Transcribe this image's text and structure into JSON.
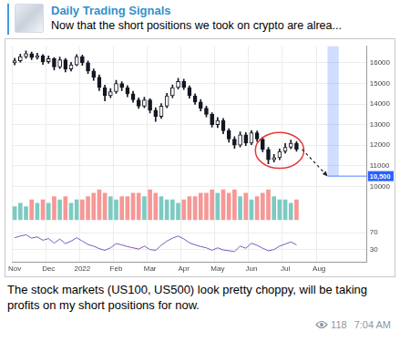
{
  "post": {
    "channel": "Daily Trading Signals",
    "preview": "Now that the short positions we took on crypto are alrea...",
    "caption": "The stock markets (US100, US500) look pretty choppy, will be taking profits on my short positions for now.",
    "views": 118,
    "time": "7:04 AM"
  },
  "chart_data": [
    {
      "type": "candlestick",
      "categories": [
        "Nov",
        null,
        null,
        null,
        null,
        null,
        "Dec",
        null,
        null,
        null,
        null,
        null,
        "2022",
        null,
        null,
        null,
        null,
        null,
        "Feb",
        null,
        null,
        null,
        null,
        null,
        "Mar",
        null,
        null,
        null,
        null,
        null,
        "Apr",
        null,
        null,
        null,
        null,
        null,
        "May",
        null,
        null,
        null,
        null,
        null,
        "Jun",
        null,
        null,
        null,
        null,
        null,
        "Jul",
        null,
        null,
        null,
        null,
        null,
        "Aug",
        null,
        null,
        null,
        null,
        null,
        null,
        null,
        null
      ],
      "open": [
        16000,
        16100,
        16300,
        16450,
        16250,
        16350,
        16050,
        16200,
        15800,
        16150,
        15700,
        15900,
        16300,
        16000,
        15600,
        15300,
        14800,
        14400,
        14600,
        15000,
        14800,
        14500,
        14200,
        13900,
        14200,
        13700,
        13400,
        13900,
        14400,
        14800,
        15100,
        14800,
        14400,
        14100,
        13800,
        13500,
        13000,
        13200,
        12700,
        12300,
        12000,
        12500,
        12100,
        12600,
        12300,
        11800,
        11300,
        11400,
        11700,
        11900,
        12100,
        null,
        null,
        null,
        null,
        null,
        null,
        null,
        null,
        null,
        null,
        null,
        null
      ],
      "high": [
        16220,
        16420,
        16580,
        16520,
        16470,
        16400,
        16330,
        16260,
        16280,
        16210,
        16020,
        16400,
        16380,
        16090,
        15700,
        15420,
        14920,
        14750,
        15150,
        15080,
        14900,
        14620,
        14300,
        14330,
        14260,
        13820,
        14020,
        14520,
        14930,
        15250,
        15200,
        14880,
        14500,
        14220,
        13900,
        13580,
        13350,
        13300,
        12800,
        12420,
        12650,
        12620,
        12720,
        12690,
        12400,
        11900,
        11550,
        11820,
        12080,
        12250,
        12180,
        null,
        null,
        null,
        null,
        null,
        null,
        null,
        null,
        null,
        null,
        null,
        null
      ],
      "low": [
        15900,
        16030,
        16220,
        16150,
        16180,
        15920,
        15980,
        15650,
        15720,
        15560,
        15600,
        15850,
        15880,
        15480,
        15150,
        14650,
        14150,
        14300,
        14520,
        14650,
        14350,
        14080,
        13780,
        13820,
        13560,
        13150,
        13300,
        13820,
        14310,
        14720,
        14700,
        14280,
        13980,
        13660,
        13380,
        12880,
        12850,
        12560,
        12150,
        11850,
        11920,
        11980,
        12030,
        12180,
        11680,
        11100,
        11180,
        11300,
        11620,
        11830,
        11700,
        null,
        null,
        null,
        null,
        null,
        null,
        null,
        null,
        null,
        null,
        null,
        null
      ],
      "close": [
        16100,
        16300,
        16450,
        16250,
        16350,
        16050,
        16200,
        15800,
        16150,
        15700,
        15900,
        16300,
        16000,
        15600,
        15300,
        14800,
        14400,
        14600,
        15000,
        14800,
        14500,
        14200,
        13900,
        14200,
        13700,
        13400,
        13900,
        14400,
        14800,
        15100,
        14800,
        14400,
        14100,
        13800,
        13500,
        13000,
        13200,
        12700,
        12300,
        12000,
        12500,
        12100,
        12600,
        12300,
        11800,
        11300,
        11400,
        11700,
        11900,
        12100,
        11800,
        null,
        null,
        null,
        null,
        null,
        null,
        null,
        null,
        null,
        null,
        null,
        null
      ],
      "ylim": [
        10000,
        16800
      ],
      "yticks": [
        10000,
        11000,
        12000,
        13000,
        14000,
        15000,
        16000
      ],
      "grid": true,
      "target": {
        "value": 10500,
        "label": "10,500"
      }
    },
    {
      "type": "bar",
      "categories": [
        "Nov",
        null,
        null,
        null,
        null,
        null,
        "Dec",
        null,
        null,
        null,
        null,
        null,
        "2022",
        null,
        null,
        null,
        null,
        null,
        "Feb",
        null,
        null,
        null,
        null,
        null,
        "Mar",
        null,
        null,
        null,
        null,
        null,
        "Apr",
        null,
        null,
        null,
        null,
        null,
        "May",
        null,
        null,
        null,
        null,
        null,
        "Jun",
        null,
        null,
        null,
        null,
        null,
        "Jul",
        null,
        null,
        null,
        null,
        null,
        "Aug",
        null,
        null,
        null,
        null,
        null,
        null,
        null,
        null
      ],
      "values": [
        4,
        5,
        4,
        6,
        5,
        6,
        5,
        7,
        6,
        7,
        5,
        6,
        6,
        7,
        8,
        9,
        8,
        7,
        6,
        7,
        7,
        8,
        8,
        7,
        9,
        8,
        7,
        6,
        6,
        5,
        6,
        7,
        7,
        8,
        8,
        9,
        8,
        9,
        8,
        9,
        7,
        8,
        6,
        7,
        8,
        9,
        7,
        6,
        6,
        5,
        6,
        null,
        null,
        null,
        null,
        null,
        null,
        null,
        null,
        null,
        null,
        null,
        null
      ],
      "ylim": [
        0,
        10
      ],
      "tick_labels": false
    },
    {
      "type": "line",
      "categories": [
        "Nov",
        null,
        null,
        null,
        null,
        null,
        "Dec",
        null,
        null,
        null,
        null,
        null,
        "2022",
        null,
        null,
        null,
        null,
        null,
        "Feb",
        null,
        null,
        null,
        null,
        null,
        "Mar",
        null,
        null,
        null,
        null,
        null,
        "Apr",
        null,
        null,
        null,
        null,
        null,
        "May",
        null,
        null,
        null,
        null,
        null,
        "Jun",
        null,
        null,
        null,
        null,
        null,
        "Jul",
        null,
        null,
        null,
        null,
        null,
        "Aug",
        null,
        null,
        null,
        null,
        null,
        null,
        null,
        null
      ],
      "values": [
        58,
        62,
        65,
        57,
        60,
        52,
        56,
        45,
        55,
        44,
        50,
        58,
        50,
        42,
        38,
        32,
        28,
        34,
        44,
        41,
        37,
        34,
        31,
        38,
        30,
        28,
        40,
        50,
        57,
        62,
        55,
        46,
        41,
        37,
        34,
        28,
        34,
        29,
        27,
        25,
        38,
        33,
        45,
        40,
        33,
        27,
        30,
        38,
        43,
        48,
        41,
        null,
        null,
        null,
        null,
        null,
        null,
        null,
        null,
        null,
        null,
        null,
        null
      ],
      "color": "#7e57c2",
      "ylim": [
        0,
        100
      ],
      "yticks": [
        30,
        70
      ],
      "grid": true
    }
  ]
}
